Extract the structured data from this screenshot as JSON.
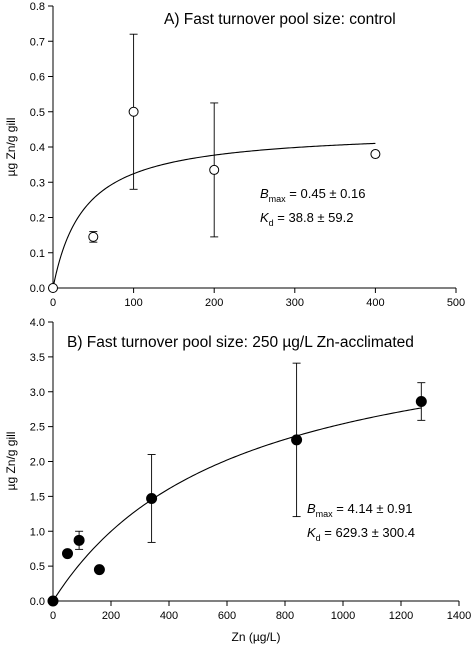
{
  "chart_data": [
    {
      "type": "scatter",
      "title": "A) Fast turnover pool size: control",
      "xlabel": "",
      "ylabel": "µg Zn/g gill",
      "xlim": [
        0,
        500
      ],
      "ylim": [
        0,
        0.8
      ],
      "x_ticks": [
        "0",
        "100",
        "200",
        "300",
        "400",
        "500"
      ],
      "y_ticks": [
        "0.0",
        "0.1",
        "0.2",
        "0.3",
        "0.4",
        "0.5",
        "0.6",
        "0.7",
        "0.8"
      ],
      "marker": "open-circle",
      "points": [
        {
          "x": 0,
          "y": 0.0,
          "err": 0
        },
        {
          "x": 50,
          "y": 0.145,
          "err": 0.015
        },
        {
          "x": 100,
          "y": 0.5,
          "err": 0.22
        },
        {
          "x": 200,
          "y": 0.335,
          "err": 0.19
        },
        {
          "x": 400,
          "y": 0.38,
          "err": 0.005
        }
      ],
      "fit": {
        "model": "Bmax*x/(Kd+x)",
        "Bmax": 0.45,
        "Kd": 38.8,
        "x_range": [
          0,
          400
        ]
      },
      "annotation": {
        "bmax_sym": "B",
        "bmax_sub": "max",
        "bmax_val": " = 0.45 ± 0.16",
        "kd_sym": "K",
        "kd_sub": "d",
        "kd_val": " = 38.8 ± 59.2"
      }
    },
    {
      "type": "scatter",
      "title": "B) Fast turnover pool size: 250 µg/L Zn-acclimated",
      "xlabel": "Zn (µg/L)",
      "ylabel": "µg Zn/g gill",
      "xlim": [
        0,
        1400
      ],
      "ylim": [
        0,
        4.0
      ],
      "x_ticks": [
        "0",
        "200",
        "400",
        "600",
        "800",
        "1000",
        "1200",
        "1400"
      ],
      "y_ticks": [
        "0.0",
        "0.5",
        "1.0",
        "1.5",
        "2.0",
        "2.5",
        "3.0",
        "3.5",
        "4.0"
      ],
      "marker": "filled-circle",
      "points": [
        {
          "x": 0,
          "y": 0.0,
          "err": 0
        },
        {
          "x": 50,
          "y": 0.68,
          "err": 0
        },
        {
          "x": 90,
          "y": 0.87,
          "err": 0.13
        },
        {
          "x": 160,
          "y": 0.45,
          "err": 0
        },
        {
          "x": 340,
          "y": 1.47,
          "err": 0.63
        },
        {
          "x": 840,
          "y": 2.31,
          "err": 1.1
        },
        {
          "x": 1270,
          "y": 2.86,
          "err": 0.27
        }
      ],
      "fit": {
        "model": "Bmax*x/(Kd+x)",
        "Bmax": 4.14,
        "Kd": 629.3,
        "x_range": [
          0,
          1270
        ]
      },
      "annotation": {
        "bmax_sym": "B",
        "bmax_sub": "max",
        "bmax_val": " = 4.14 ± 0.91",
        "kd_sym": "K",
        "kd_sub": "d",
        "kd_val": " = 629.3 ± 300.4"
      }
    }
  ]
}
